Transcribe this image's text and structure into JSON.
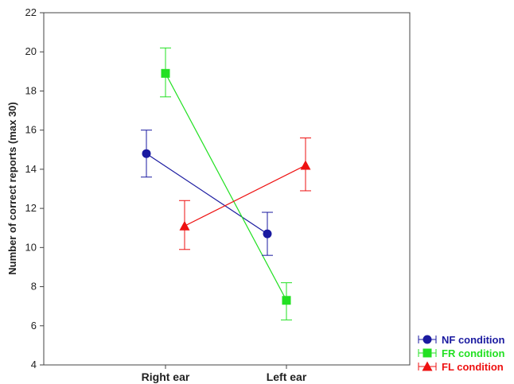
{
  "chart_data": {
    "type": "line",
    "title": "",
    "xlabel": "",
    "ylabel": "Number of correct reports (max 30)",
    "categories": [
      "Right ear",
      "Left ear"
    ],
    "ylim": [
      4,
      22
    ],
    "yticks": [
      "4",
      "6",
      "8",
      "10",
      "12",
      "14",
      "16",
      "18",
      "20",
      "22"
    ],
    "grid": false,
    "legend_position": "bottom-right, outside plot",
    "series": [
      {
        "name": "NF condition",
        "color": "#1a1aa0",
        "marker": "circle",
        "values": [
          14.8,
          10.7
        ],
        "err_low": [
          13.6,
          9.6
        ],
        "err_high": [
          16.0,
          11.8
        ]
      },
      {
        "name": "FR condition",
        "color": "#22e022",
        "marker": "square",
        "values": [
          18.9,
          7.3
        ],
        "err_low": [
          17.7,
          6.3
        ],
        "err_high": [
          20.2,
          8.2
        ]
      },
      {
        "name": "FL condition",
        "color": "#ee1111",
        "marker": "triangle",
        "values": [
          11.1,
          14.2
        ],
        "err_low": [
          9.9,
          12.9
        ],
        "err_high": [
          12.4,
          15.6
        ]
      }
    ]
  }
}
